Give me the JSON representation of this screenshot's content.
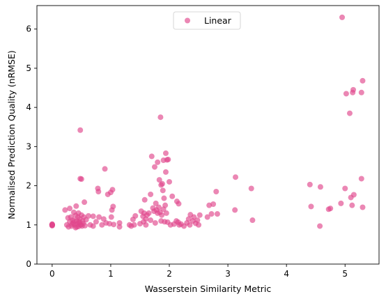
{
  "chart_data": {
    "type": "scatter",
    "xlabel": "Wasserstein Similarity Metric",
    "ylabel": "Normalised Prediction Quality (nRMSE)",
    "xlim": [
      -0.26,
      5.58
    ],
    "ylim": [
      0,
      6.6
    ],
    "xticks": [
      0,
      1,
      2,
      3,
      4,
      5
    ],
    "yticks": [
      0,
      1,
      2,
      3,
      4,
      5,
      6
    ],
    "grid": false,
    "legend_position": "top-center",
    "series": [
      {
        "name": "Linear",
        "color": "#e0468c",
        "points": [
          [
            0.0,
            1.0
          ],
          [
            0.0,
            1.0
          ],
          [
            0.0,
            1.01
          ],
          [
            0.0,
            0.99
          ],
          [
            0.0,
            1.0
          ],
          [
            0.0,
            1.02
          ],
          [
            0.0,
            0.98
          ],
          [
            0.0,
            1.0
          ],
          [
            0.22,
            1.38
          ],
          [
            0.25,
            1.0
          ],
          [
            0.27,
            1.18
          ],
          [
            0.28,
            0.95
          ],
          [
            0.3,
            1.08
          ],
          [
            0.3,
            1.42
          ],
          [
            0.32,
            1.2
          ],
          [
            0.33,
            0.97
          ],
          [
            0.35,
            1.12
          ],
          [
            0.36,
            1.05
          ],
          [
            0.37,
            1.32
          ],
          [
            0.38,
            1.0
          ],
          [
            0.4,
            1.24
          ],
          [
            0.4,
            0.93
          ],
          [
            0.41,
            1.48
          ],
          [
            0.42,
            1.1
          ],
          [
            0.43,
            1.02
          ],
          [
            0.44,
            1.2
          ],
          [
            0.45,
            0.96
          ],
          [
            0.45,
            1.3
          ],
          [
            0.46,
            1.05
          ],
          [
            0.47,
            1.15
          ],
          [
            0.48,
            3.42
          ],
          [
            0.48,
            2.18
          ],
          [
            0.49,
            1.0
          ],
          [
            0.5,
            1.25
          ],
          [
            0.5,
            2.17
          ],
          [
            0.51,
            0.97
          ],
          [
            0.52,
            1.1
          ],
          [
            0.53,
            1.04
          ],
          [
            0.54,
            1.2
          ],
          [
            0.55,
            1.58
          ],
          [
            0.56,
            0.98
          ],
          [
            0.58,
            1.13
          ],
          [
            0.62,
            1.23
          ],
          [
            0.65,
            1.0
          ],
          [
            0.7,
            1.22
          ],
          [
            0.7,
            0.97
          ],
          [
            0.75,
            1.08
          ],
          [
            0.78,
            1.93
          ],
          [
            0.79,
            1.85
          ],
          [
            0.8,
            1.2
          ],
          [
            0.85,
            1.0
          ],
          [
            0.88,
            1.15
          ],
          [
            0.9,
            2.43
          ],
          [
            0.92,
            1.05
          ],
          [
            0.95,
            1.78
          ],
          [
            0.98,
            1.03
          ],
          [
            1.0,
            1.83
          ],
          [
            1.01,
            1.2
          ],
          [
            1.02,
            1.38
          ],
          [
            1.03,
            1.9
          ],
          [
            1.04,
            1.47
          ],
          [
            1.05,
            1.01
          ],
          [
            1.15,
            0.95
          ],
          [
            1.15,
            1.05
          ],
          [
            1.32,
            1.0
          ],
          [
            1.35,
            0.97
          ],
          [
            1.38,
            1.14
          ],
          [
            1.4,
            1.0
          ],
          [
            1.42,
            1.23
          ],
          [
            1.5,
            1.03
          ],
          [
            1.52,
            1.35
          ],
          [
            1.55,
            1.22
          ],
          [
            1.56,
            1.08
          ],
          [
            1.57,
            1.3
          ],
          [
            1.58,
            1.64
          ],
          [
            1.6,
            1.15
          ],
          [
            1.6,
            1.0
          ],
          [
            1.62,
            1.25
          ],
          [
            1.65,
            1.3
          ],
          [
            1.68,
            1.12
          ],
          [
            1.68,
            1.78
          ],
          [
            1.7,
            2.75
          ],
          [
            1.72,
            1.43
          ],
          [
            1.74,
            1.35
          ],
          [
            1.75,
            2.48
          ],
          [
            1.76,
            1.05
          ],
          [
            1.77,
            1.55
          ],
          [
            1.78,
            1.38
          ],
          [
            1.8,
            1.3
          ],
          [
            1.8,
            2.6
          ],
          [
            1.82,
            1.45
          ],
          [
            1.83,
            2.15
          ],
          [
            1.84,
            1.32
          ],
          [
            1.85,
            3.75
          ],
          [
            1.86,
            2.02
          ],
          [
            1.86,
            1.1
          ],
          [
            1.87,
            1.25
          ],
          [
            1.88,
            2.05
          ],
          [
            1.89,
            1.88
          ],
          [
            1.9,
            1.4
          ],
          [
            1.9,
            2.65
          ],
          [
            1.91,
            1.68
          ],
          [
            1.92,
            1.08
          ],
          [
            1.93,
            1.5
          ],
          [
            1.94,
            2.35
          ],
          [
            1.94,
            2.83
          ],
          [
            1.95,
            1.3
          ],
          [
            1.96,
            2.66
          ],
          [
            1.97,
            1.07
          ],
          [
            1.98,
            2.67
          ],
          [
            2.0,
            2.1
          ],
          [
            2.02,
            1.0
          ],
          [
            2.05,
            1.73
          ],
          [
            2.08,
            1.02
          ],
          [
            2.12,
            1.1
          ],
          [
            2.13,
            1.6
          ],
          [
            2.15,
            1.07
          ],
          [
            2.16,
            1.54
          ],
          [
            2.17,
            1.0
          ],
          [
            2.2,
            1.02
          ],
          [
            2.25,
            0.97
          ],
          [
            2.3,
            1.05
          ],
          [
            2.33,
            1.15
          ],
          [
            2.35,
            1.0
          ],
          [
            2.36,
            1.26
          ],
          [
            2.4,
            1.1
          ],
          [
            2.42,
            1.2
          ],
          [
            2.45,
            1.04
          ],
          [
            2.48,
            1.12
          ],
          [
            2.5,
            1.0
          ],
          [
            2.52,
            1.25
          ],
          [
            2.65,
            1.2
          ],
          [
            2.68,
            1.5
          ],
          [
            2.72,
            1.28
          ],
          [
            2.75,
            1.53
          ],
          [
            2.8,
            1.85
          ],
          [
            2.82,
            1.28
          ],
          [
            3.12,
            1.38
          ],
          [
            3.13,
            2.22
          ],
          [
            3.4,
            1.93
          ],
          [
            3.42,
            1.12
          ],
          [
            4.4,
            2.03
          ],
          [
            4.42,
            1.47
          ],
          [
            4.57,
            0.97
          ],
          [
            4.58,
            1.97
          ],
          [
            4.72,
            1.4
          ],
          [
            4.75,
            1.42
          ],
          [
            4.93,
            1.55
          ],
          [
            4.95,
            6.3
          ],
          [
            5.0,
            1.93
          ],
          [
            5.02,
            4.35
          ],
          [
            5.08,
            3.85
          ],
          [
            5.1,
            1.7
          ],
          [
            5.12,
            1.5
          ],
          [
            5.13,
            4.38
          ],
          [
            5.14,
            4.45
          ],
          [
            5.15,
            1.77
          ],
          [
            5.28,
            2.18
          ],
          [
            5.28,
            4.38
          ],
          [
            5.3,
            1.45
          ],
          [
            5.3,
            4.68
          ],
          [
            0.48,
            1.0
          ],
          [
            0.42,
            0.95
          ],
          [
            0.38,
            1.1
          ],
          [
            0.34,
            1.02
          ],
          [
            0.46,
            1.08
          ]
        ]
      }
    ]
  }
}
